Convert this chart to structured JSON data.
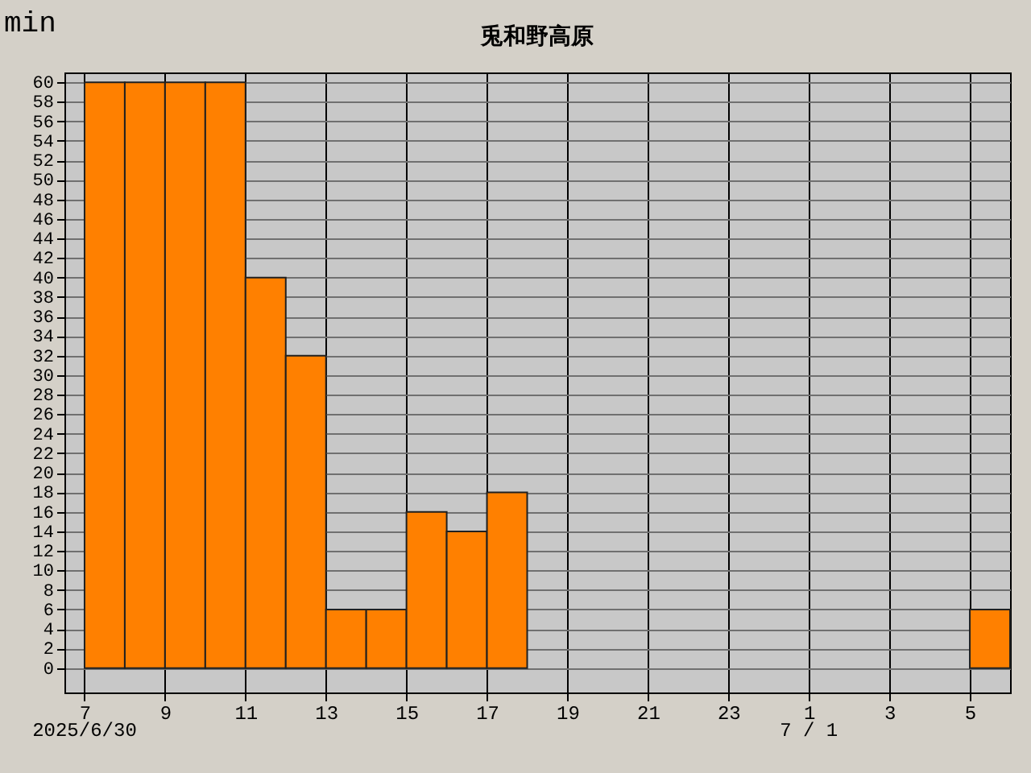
{
  "chart_data": {
    "type": "histogram",
    "title": "兎和野高原",
    "ylabel": "min",
    "bins": [
      "2025-06-30T07:00",
      "2025-06-30T08:00",
      "2025-06-30T09:00",
      "2025-06-30T10:00",
      "2025-06-30T11:00",
      "2025-06-30T12:00",
      "2025-06-30T13:00",
      "2025-06-30T14:00",
      "2025-06-30T15:00",
      "2025-06-30T16:00",
      "2025-06-30T17:00",
      "2025-06-30T18:00",
      "2025-06-30T19:00",
      "2025-06-30T20:00",
      "2025-06-30T21:00",
      "2025-06-30T22:00",
      "2025-06-30T23:00",
      "2025-07-01T00:00",
      "2025-07-01T01:00",
      "2025-07-01T02:00",
      "2025-07-01T03:00",
      "2025-07-01T04:00",
      "2025-07-01T05:00",
      "2025-07-01T06:00"
    ],
    "values": [
      60,
      60,
      60,
      60,
      40,
      32,
      6,
      6,
      16,
      14,
      18,
      0,
      0,
      0,
      0,
      0,
      0,
      0,
      0,
      0,
      0,
      0,
      6
    ],
    "color": "#ff8000",
    "xlim": [
      "2025-06-30T06:30",
      "2025-07-01T06:00"
    ],
    "xticks": [
      {
        "value": "2025-06-30T07:00",
        "label": "7"
      },
      {
        "value": "2025-06-30T09:00",
        "label": "9"
      },
      {
        "value": "2025-06-30T11:00",
        "label": "11"
      },
      {
        "value": "2025-06-30T13:00",
        "label": "13"
      },
      {
        "value": "2025-06-30T15:00",
        "label": "15"
      },
      {
        "value": "2025-06-30T17:00",
        "label": "17"
      },
      {
        "value": "2025-06-30T19:00",
        "label": "19"
      },
      {
        "value": "2025-06-30T21:00",
        "label": "21"
      },
      {
        "value": "2025-06-30T23:00",
        "label": "23"
      },
      {
        "value": "2025-07-01T01:00",
        "label": "1"
      },
      {
        "value": "2025-07-01T03:00",
        "label": "3"
      },
      {
        "value": "2025-07-01T05:00",
        "label": "5"
      }
    ],
    "ylim": [
      -2.5,
      61
    ],
    "yticks": [
      0,
      2,
      4,
      6,
      8,
      10,
      12,
      14,
      16,
      18,
      20,
      22,
      24,
      26,
      28,
      30,
      32,
      34,
      36,
      38,
      40,
      42,
      44,
      46,
      48,
      50,
      52,
      54,
      56,
      58,
      60
    ],
    "grid": true,
    "annotations": [
      "2025/6/30",
      "7 / 1"
    ]
  }
}
